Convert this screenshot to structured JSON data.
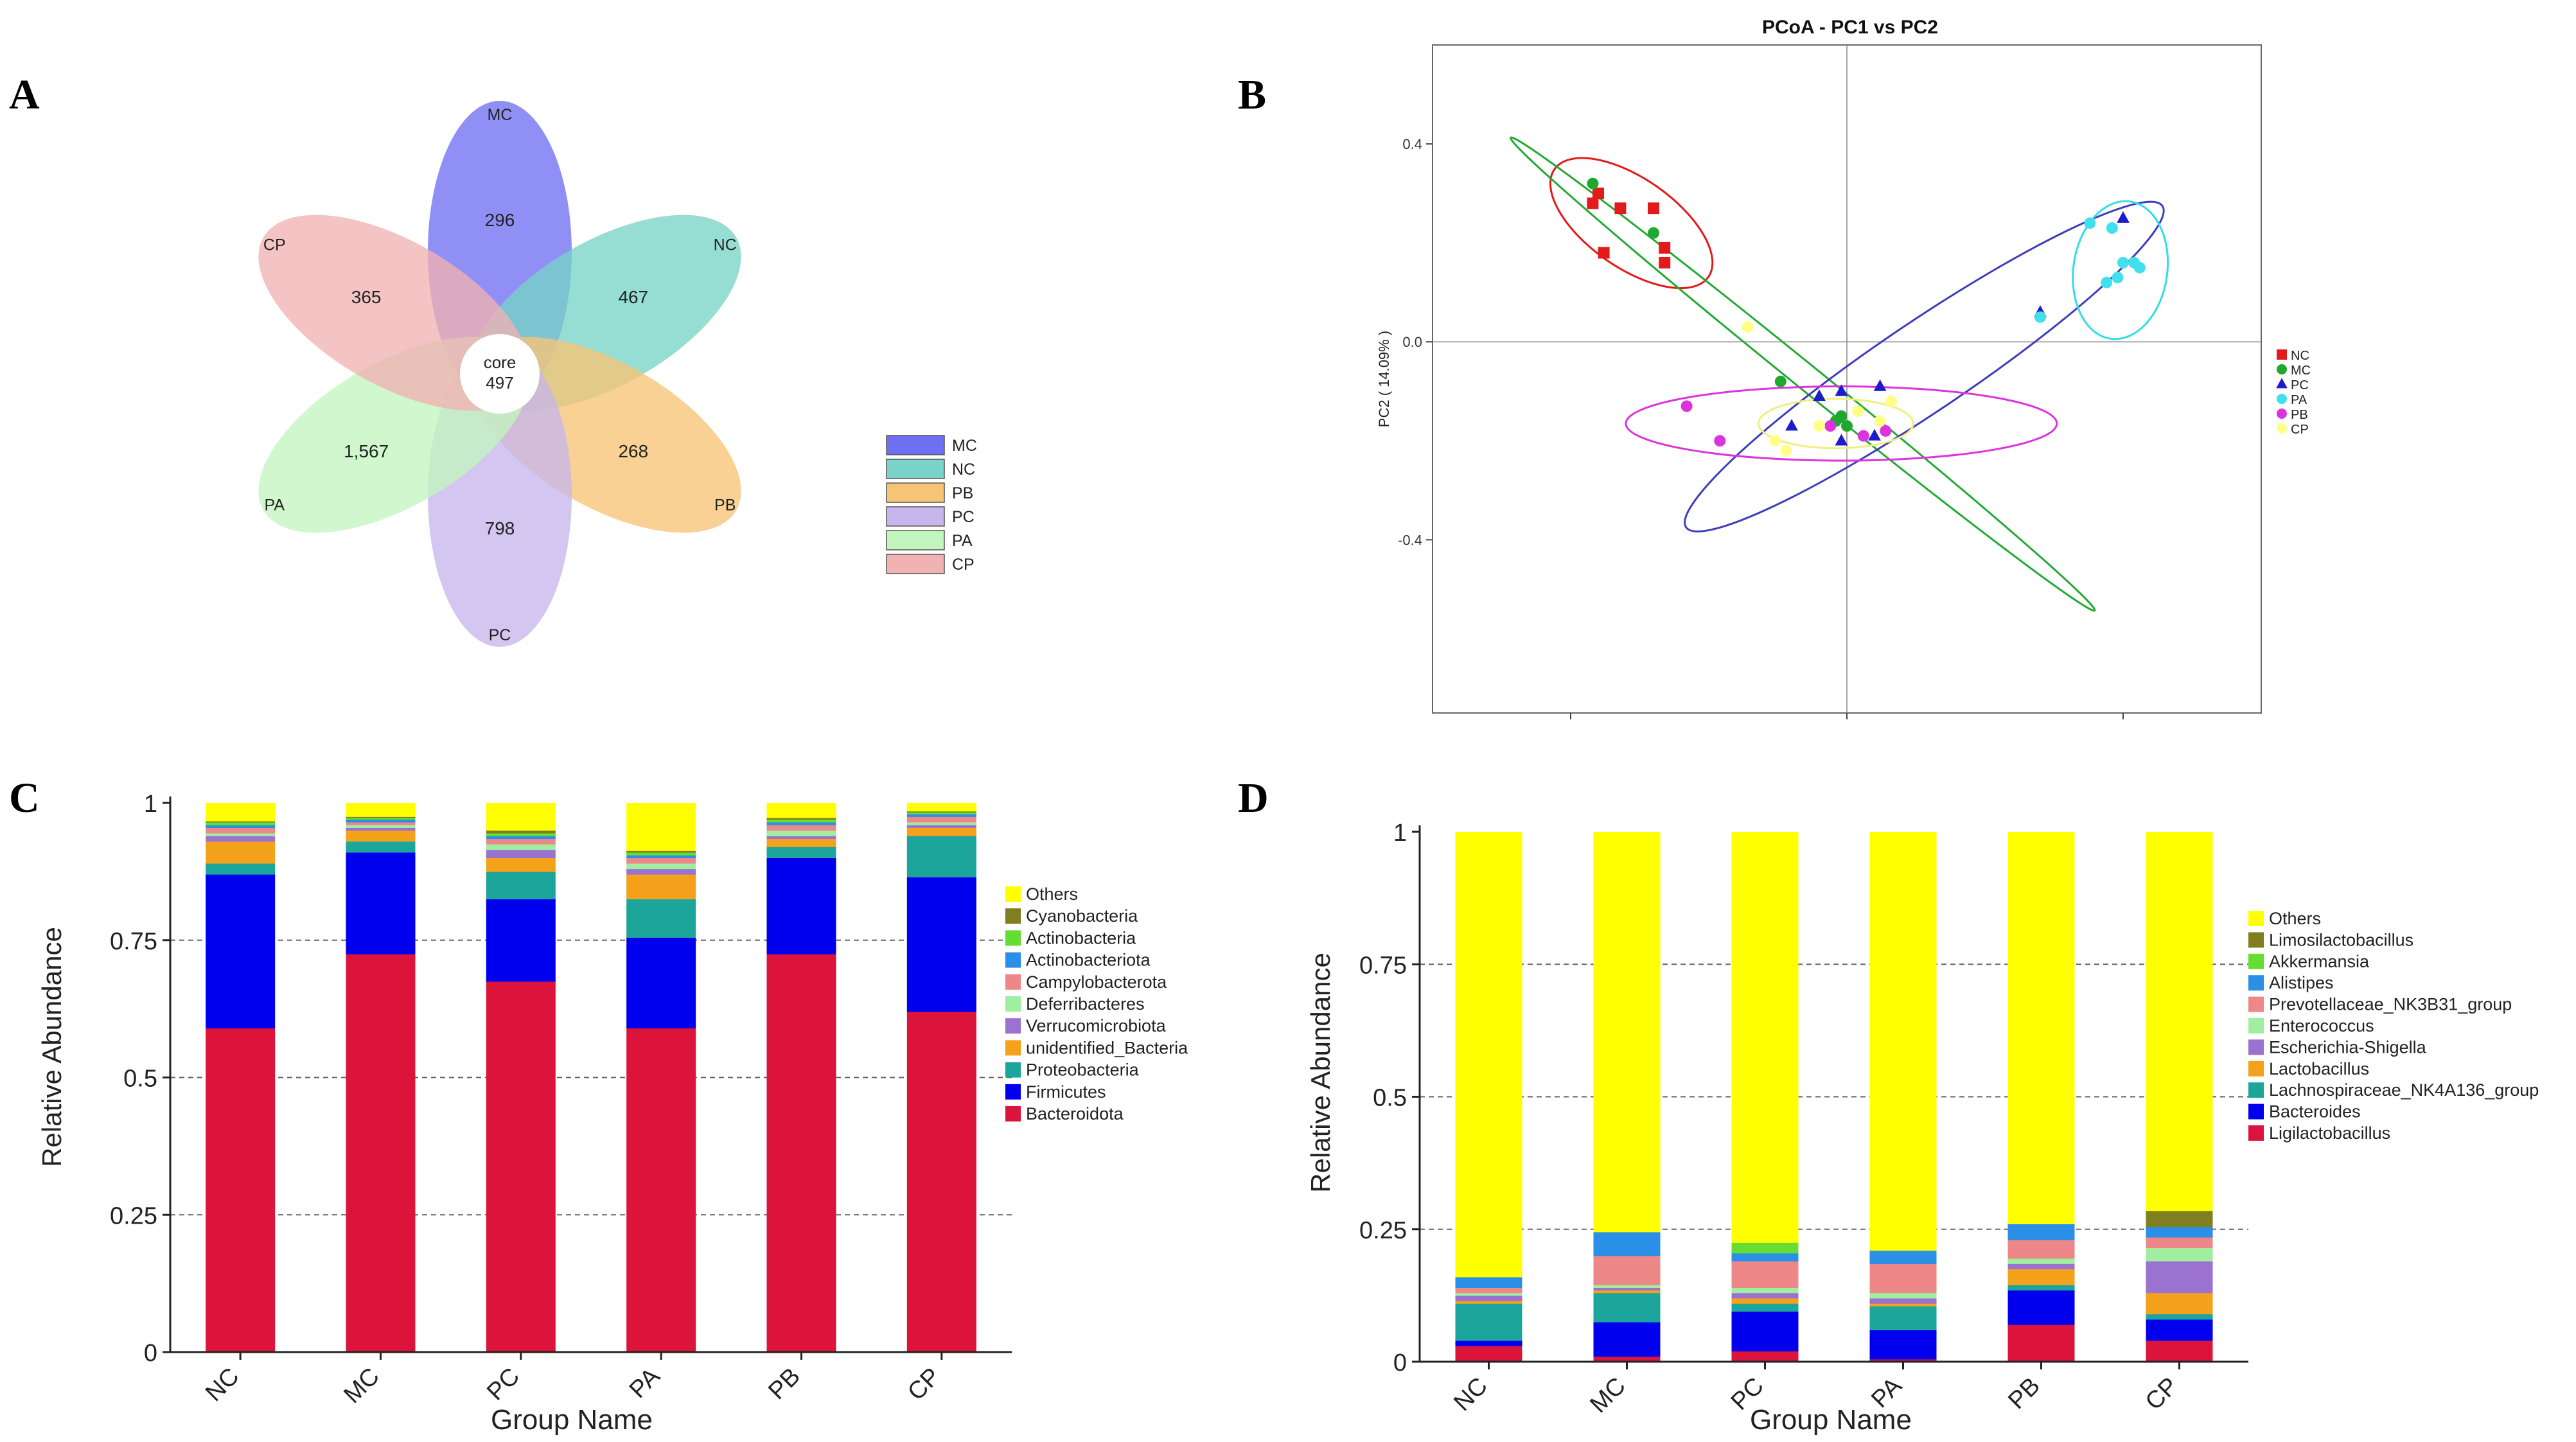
{
  "panel_labels": {
    "A": "A",
    "B": "B",
    "C": "C",
    "D": "D"
  },
  "chart_data": [
    {
      "id": "A",
      "type": "venn",
      "title": "",
      "petals": [
        {
          "name": "MC",
          "value": "296",
          "color": "#6f6ff2"
        },
        {
          "name": "NC",
          "value": "467",
          "color": "#79d3c8"
        },
        {
          "name": "PB",
          "value": "268",
          "color": "#f7c476"
        },
        {
          "name": "PC",
          "value": "798",
          "color": "#c7b6ec"
        },
        {
          "name": "PA",
          "value": "1,567",
          "color": "#c3f5bf"
        },
        {
          "name": "CP",
          "value": "365",
          "color": "#f1b2b2"
        }
      ],
      "core_label": "core",
      "core_value": "497",
      "legend": [
        "MC",
        "NC",
        "PB",
        "PC",
        "PA",
        "CP"
      ]
    },
    {
      "id": "B",
      "type": "scatter",
      "title": "PCoA - PC1 vs PC2",
      "xlabel": "",
      "ylabel": "PC2 ( 14.09% )",
      "xlim": [
        -0.75,
        0.75
      ],
      "ylim": [
        -0.75,
        0.6
      ],
      "yticks": [
        "0.4",
        "0.0",
        "-0.4"
      ],
      "ytick_values": [
        0.4,
        0.0,
        -0.4
      ],
      "series": [
        {
          "name": "NC",
          "marker": "square",
          "color": "#e31a1c",
          "points": [
            [
              -0.46,
              0.28
            ],
            [
              -0.45,
              0.3
            ],
            [
              -0.41,
              0.27
            ],
            [
              -0.35,
              0.27
            ],
            [
              -0.33,
              0.19
            ],
            [
              -0.33,
              0.16
            ],
            [
              -0.44,
              0.18
            ]
          ]
        },
        {
          "name": "MC",
          "marker": "circle",
          "color": "#1fa82e",
          "points": [
            [
              -0.46,
              0.32
            ],
            [
              -0.35,
              0.22
            ],
            [
              -0.12,
              -0.08
            ],
            [
              -0.02,
              -0.16
            ],
            [
              -0.01,
              -0.15
            ],
            [
              0.0,
              -0.17
            ]
          ]
        },
        {
          "name": "PC",
          "marker": "triangle",
          "color": "#1c1ccc",
          "points": [
            [
              -0.1,
              -0.17
            ],
            [
              -0.05,
              -0.11
            ],
            [
              -0.01,
              -0.1
            ],
            [
              0.06,
              -0.09
            ],
            [
              -0.01,
              -0.2
            ],
            [
              0.05,
              -0.19
            ],
            [
              0.35,
              0.06
            ],
            [
              0.5,
              0.25
            ]
          ]
        },
        {
          "name": "PA",
          "marker": "circle",
          "color": "#42e0ee",
          "points": [
            [
              0.44,
              0.24
            ],
            [
              0.48,
              0.23
            ],
            [
              0.5,
              0.16
            ],
            [
              0.52,
              0.16
            ],
            [
              0.49,
              0.13
            ],
            [
              0.47,
              0.12
            ],
            [
              0.53,
              0.15
            ],
            [
              0.35,
              0.05
            ]
          ]
        },
        {
          "name": "PB",
          "marker": "circle",
          "color": "#dd33dd",
          "points": [
            [
              -0.29,
              -0.13
            ],
            [
              -0.23,
              -0.2
            ],
            [
              -0.03,
              -0.17
            ],
            [
              0.03,
              -0.19
            ],
            [
              0.07,
              -0.18
            ]
          ]
        },
        {
          "name": "CP",
          "marker": "circle",
          "color": "#ffff88",
          "points": [
            [
              -0.18,
              0.03
            ],
            [
              -0.13,
              -0.2
            ],
            [
              -0.05,
              -0.17
            ],
            [
              0.02,
              -0.14
            ],
            [
              0.08,
              -0.12
            ],
            [
              0.06,
              -0.16
            ],
            [
              -0.11,
              -0.22
            ]
          ]
        }
      ],
      "legend": [
        "NC",
        "MC",
        "PC",
        "PA",
        "PB",
        "CP"
      ]
    },
    {
      "id": "C",
      "type": "stacked_bar",
      "title": "",
      "xlabel": "Group Name",
      "ylabel": "Relative Abundance",
      "ylim": [
        0,
        1
      ],
      "yticks": [
        "0",
        "0.25",
        "0.5",
        "0.75",
        "1"
      ],
      "ytick_values": [
        0,
        0.25,
        0.5,
        0.75,
        1
      ],
      "categories": [
        "NC",
        "MC",
        "PC",
        "PA",
        "PB",
        "CP"
      ],
      "series": [
        {
          "name": "Bacteroidota",
          "color": "#dc143c",
          "values": [
            0.59,
            0.725,
            0.675,
            0.59,
            0.725,
            0.62
          ]
        },
        {
          "name": "Firmicutes",
          "color": "#0000ee",
          "values": [
            0.28,
            0.185,
            0.15,
            0.165,
            0.175,
            0.245
          ]
        },
        {
          "name": "Proteobacteria",
          "color": "#1ca59b",
          "values": [
            0.02,
            0.02,
            0.05,
            0.07,
            0.02,
            0.075
          ]
        },
        {
          "name": "unidentified_Bacteria",
          "color": "#f4a21b",
          "values": [
            0.04,
            0.02,
            0.025,
            0.045,
            0.015,
            0.015
          ]
        },
        {
          "name": "Verrucomicrobiota",
          "color": "#9b72cf",
          "values": [
            0.01,
            0.005,
            0.015,
            0.01,
            0.005,
            0.005
          ]
        },
        {
          "name": "Deferribacteres",
          "color": "#a0eea0",
          "values": [
            0.005,
            0.005,
            0.01,
            0.01,
            0.01,
            0.005
          ]
        },
        {
          "name": "Campylobacterota",
          "color": "#ee8888",
          "values": [
            0.01,
            0.005,
            0.01,
            0.01,
            0.01,
            0.01
          ]
        },
        {
          "name": "Actinobacteriota",
          "color": "#2a8fe6",
          "values": [
            0.005,
            0.005,
            0.005,
            0.005,
            0.005,
            0.005
          ]
        },
        {
          "name": "Actinobacteria",
          "color": "#66dd33",
          "values": [
            0.005,
            0.003,
            0.005,
            0.005,
            0.005,
            0.003
          ]
        },
        {
          "name": "Cyanobacteria",
          "color": "#7f7f1f",
          "values": [
            0.002,
            0.002,
            0.005,
            0.003,
            0.003,
            0.002
          ]
        },
        {
          "name": "Others",
          "color": "#ffff00",
          "values": [
            0.033,
            0.025,
            0.05,
            0.087,
            0.027,
            0.015
          ]
        }
      ],
      "legend_order": [
        "Others",
        "Cyanobacteria",
        "Actinobacteria",
        "Actinobacteriota",
        "Campylobacterota",
        "Deferribacteres",
        "Verrucomicrobiota",
        "unidentified_Bacteria",
        "Proteobacteria",
        "Firmicutes",
        "Bacteroidota"
      ]
    },
    {
      "id": "D",
      "type": "stacked_bar",
      "title": "",
      "xlabel": "Group Name",
      "ylabel": "Relative Abundance",
      "ylim": [
        0,
        1
      ],
      "yticks": [
        "0",
        "0.25",
        "0.5",
        "0.75",
        "1"
      ],
      "ytick_values": [
        0,
        0.25,
        0.5,
        0.75,
        1
      ],
      "categories": [
        "NC",
        "MC",
        "PC",
        "PA",
        "PB",
        "CP"
      ],
      "series": [
        {
          "name": "Ligilactobacillus",
          "color": "#dc143c",
          "values": [
            0.03,
            0.01,
            0.02,
            0.005,
            0.07,
            0.04
          ]
        },
        {
          "name": "Bacteroides",
          "color": "#0000ee",
          "values": [
            0.01,
            0.065,
            0.075,
            0.055,
            0.065,
            0.04
          ]
        },
        {
          "name": "Lachnospiraceae_NK4A136_group",
          "color": "#1ca59b",
          "values": [
            0.07,
            0.055,
            0.015,
            0.045,
            0.01,
            0.01
          ]
        },
        {
          "name": "Lactobacillus",
          "color": "#f4a21b",
          "values": [
            0.005,
            0.005,
            0.01,
            0.005,
            0.03,
            0.04
          ]
        },
        {
          "name": "Escherichia-Shigella",
          "color": "#9b72cf",
          "values": [
            0.01,
            0.005,
            0.01,
            0.01,
            0.01,
            0.06
          ]
        },
        {
          "name": "Enterococcus",
          "color": "#a0eea0",
          "values": [
            0.005,
            0.005,
            0.01,
            0.01,
            0.01,
            0.025
          ]
        },
        {
          "name": "Prevotellaceae_NK3B31_group",
          "color": "#ee8888",
          "values": [
            0.01,
            0.055,
            0.05,
            0.055,
            0.035,
            0.02
          ]
        },
        {
          "name": "Alistipes",
          "color": "#2a8fe6",
          "values": [
            0.02,
            0.045,
            0.015,
            0.025,
            0.03,
            0.02
          ]
        },
        {
          "name": "Akkermansia",
          "color": "#66dd33",
          "values": [
            0.0,
            0.0,
            0.02,
            0.0,
            0.0,
            0.0
          ]
        },
        {
          "name": "Limosilactobacillus",
          "color": "#7f7f1f",
          "values": [
            0.0,
            0.0,
            0.0,
            0.0,
            0.0,
            0.03
          ]
        },
        {
          "name": "Others",
          "color": "#ffff00",
          "values": [
            0.84,
            0.755,
            0.775,
            0.79,
            0.74,
            0.715
          ]
        }
      ],
      "legend_order": [
        "Others",
        "Limosilactobacillus",
        "Akkermansia",
        "Alistipes",
        "Prevotellaceae_NK3B31_group",
        "Enterococcus",
        "Escherichia-Shigella",
        "Lactobacillus",
        "Lachnospiraceae_NK4A136_group",
        "Bacteroides",
        "Ligilactobacillus"
      ]
    }
  ]
}
